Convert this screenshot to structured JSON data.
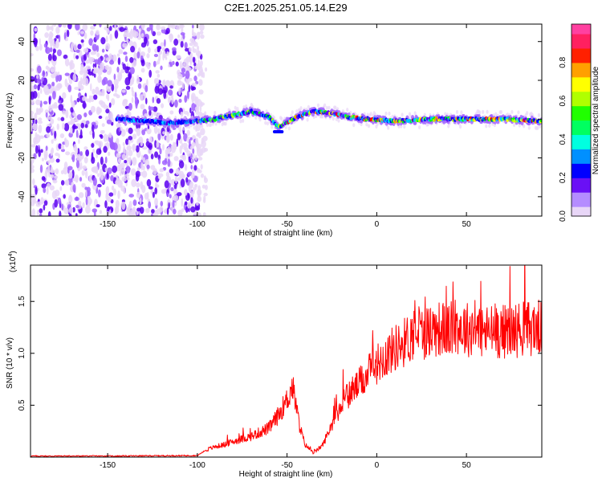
{
  "title": "C2E1.2025.251.05.14.E29",
  "chart_data": [
    {
      "type": "heatmap",
      "xlabel": "Height of straight line (km)",
      "ylabel": "Frequency (Hz)",
      "xlim": [
        -193,
        92
      ],
      "ylim": [
        -50,
        49
      ],
      "xticks": [
        -150,
        -100,
        -50,
        0,
        50
      ],
      "yticks": [
        -40,
        -20,
        0,
        20,
        40
      ],
      "colorbar": {
        "label": "Normalized spectral amplitude",
        "range": [
          0.0,
          1.0
        ],
        "ticks": [
          0.0,
          0.2,
          0.4,
          0.6,
          0.8
        ],
        "colors": [
          "#e8d6f7",
          "#a060ff",
          "#5a00f0",
          "#0000ff",
          "#00c8ff",
          "#00ffb0",
          "#00ff00",
          "#b0ff00",
          "#ffff00",
          "#ff9000",
          "#ff0000",
          "#ff40a0"
        ]
      },
      "noise_region_end_km": -95,
      "ridge": {
        "x": [
          -145,
          -130,
          -115,
          -100,
          -90,
          -80,
          -70,
          -60,
          -55,
          -45,
          -35,
          -25,
          -15,
          -5,
          10,
          30,
          50,
          70,
          91
        ],
        "freq": [
          0,
          -1,
          -2,
          -1,
          0,
          2,
          4,
          1,
          -4,
          1,
          4,
          3,
          1,
          0,
          -1,
          0,
          0,
          0,
          -1
        ]
      }
    },
    {
      "type": "line",
      "xlabel": "Height of straight line (km)",
      "ylabel": "SNR (10 * v/v)",
      "yscale_label": "(x10",
      "yscale_exp": "4",
      "xlim": [
        -193,
        92
      ],
      "ylim": [
        0,
        18500
      ],
      "xticks": [
        -150,
        -100,
        -50,
        0,
        50
      ],
      "yticks": [
        "0.5",
        "1.0",
        "1.5"
      ],
      "series": [
        {
          "name": "SNR",
          "color": "#ff0000",
          "x": [
            -193,
            -150,
            -100,
            -95,
            -90,
            -85,
            -80,
            -70,
            -60,
            -55,
            -50,
            -47,
            -45,
            -43,
            -40,
            -35,
            -30,
            -25,
            -20,
            -15,
            -10,
            -5,
            0,
            5,
            10,
            15,
            20,
            22,
            25,
            30,
            35,
            40,
            45,
            50,
            55,
            60,
            65,
            70,
            80,
            91
          ],
          "y": [
            100,
            100,
            150,
            700,
            1000,
            1200,
            1500,
            2000,
            2800,
            4000,
            5500,
            6800,
            5000,
            3000,
            1200,
            400,
            1200,
            3200,
            5000,
            6200,
            7000,
            8000,
            9000,
            9800,
            10500,
            11000,
            11800,
            12500,
            11900,
            12200,
            12400,
            12200,
            12600,
            12300,
            12500,
            12000,
            12200,
            12100,
            12300,
            12500
          ]
        }
      ]
    }
  ]
}
